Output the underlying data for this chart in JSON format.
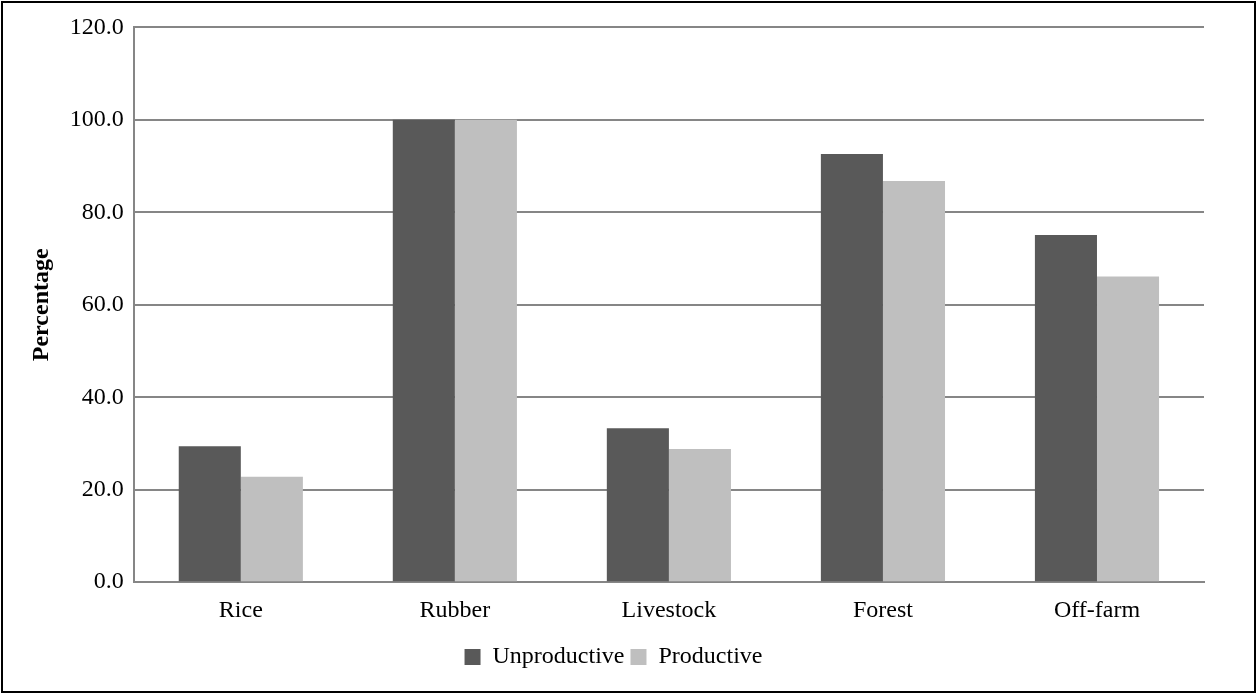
{
  "chart_data": {
    "type": "bar",
    "ylabel": "Percentage",
    "categories": [
      "Rice",
      "Rubber",
      "Livestock",
      "Forest",
      "Off-farm"
    ],
    "series": [
      {
        "name": "Unproductive",
        "color": "#595959",
        "values": [
          29.4,
          100,
          33.3,
          92.6,
          75.1
        ]
      },
      {
        "name": "Productive",
        "color": "#bfbfbf",
        "values": [
          22.8,
          100,
          28.8,
          86.8,
          66.1
        ]
      }
    ],
    "ylim": [
      0,
      120
    ],
    "yticks": [
      {
        "value": 0,
        "label": "0.0"
      },
      {
        "value": 20,
        "label": "20.0"
      },
      {
        "value": 40,
        "label": "40.0"
      },
      {
        "value": 60,
        "label": "60.0"
      },
      {
        "value": 80,
        "label": "80.0"
      },
      {
        "value": 100,
        "label": "100.0"
      },
      {
        "value": 120,
        "label": "120.0"
      }
    ],
    "grid": "y",
    "legend": "bottom"
  }
}
